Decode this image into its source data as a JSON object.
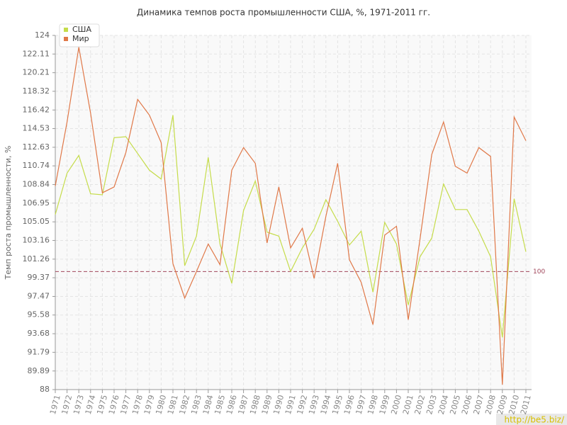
{
  "chart_data": {
    "type": "line",
    "title": "Динамика темпов роста промышленности США, %, 1971-2011 гг.",
    "y_label": "Темп роста промышленности, %",
    "x": [
      1971,
      1972,
      1973,
      1974,
      1975,
      1976,
      1977,
      1978,
      1979,
      1980,
      1981,
      1982,
      1983,
      1984,
      1985,
      1986,
      1987,
      1988,
      1989,
      1990,
      1991,
      1992,
      1993,
      1994,
      1995,
      1996,
      1997,
      1998,
      1999,
      2000,
      2001,
      2002,
      2003,
      2004,
      2005,
      2006,
      2007,
      2008,
      2009,
      2010,
      2011
    ],
    "xlim": [
      1971,
      2011
    ],
    "ylim": [
      88,
      124
    ],
    "yticks": [
      88,
      89.89,
      91.79,
      93.68,
      95.58,
      97.47,
      99.37,
      101.26,
      103.16,
      105.05,
      106.95,
      108.84,
      110.74,
      112.63,
      114.53,
      116.42,
      118.32,
      120.21,
      122.11,
      124
    ],
    "grid": true,
    "legend": "top-left",
    "reference_line": 100,
    "reference_color": "#a0455a",
    "watermark": "http://be5.biz/",
    "series": [
      {
        "name": "США",
        "color": "#c5dc4a",
        "values": [
          105.8,
          110.0,
          111.8,
          107.9,
          107.8,
          113.6,
          113.7,
          112.0,
          110.3,
          109.4,
          115.9,
          100.6,
          103.6,
          111.6,
          102.8,
          98.8,
          106.2,
          109.2,
          104.0,
          103.6,
          100.0,
          102.4,
          104.3,
          107.3,
          105.1,
          102.7,
          104.1,
          97.9,
          105.0,
          102.8,
          96.6,
          101.5,
          103.4,
          108.9,
          106.3,
          106.3,
          104.1,
          101.5,
          93.3,
          107.4,
          102.0
        ]
      },
      {
        "name": "Мир",
        "color": "#e07848",
        "values": [
          108.7,
          115.2,
          122.8,
          116.1,
          108.0,
          108.6,
          112.1,
          117.5,
          115.9,
          113.1,
          100.8,
          97.3,
          100.0,
          102.8,
          100.7,
          110.3,
          112.6,
          111.0,
          102.9,
          108.6,
          102.4,
          104.4,
          99.3,
          105.6,
          111.0,
          101.2,
          98.9,
          94.6,
          103.7,
          104.6,
          95.1,
          103.3,
          111.9,
          115.2,
          110.7,
          110.0,
          112.6,
          111.7,
          88.5,
          115.7,
          113.3
        ]
      }
    ]
  }
}
